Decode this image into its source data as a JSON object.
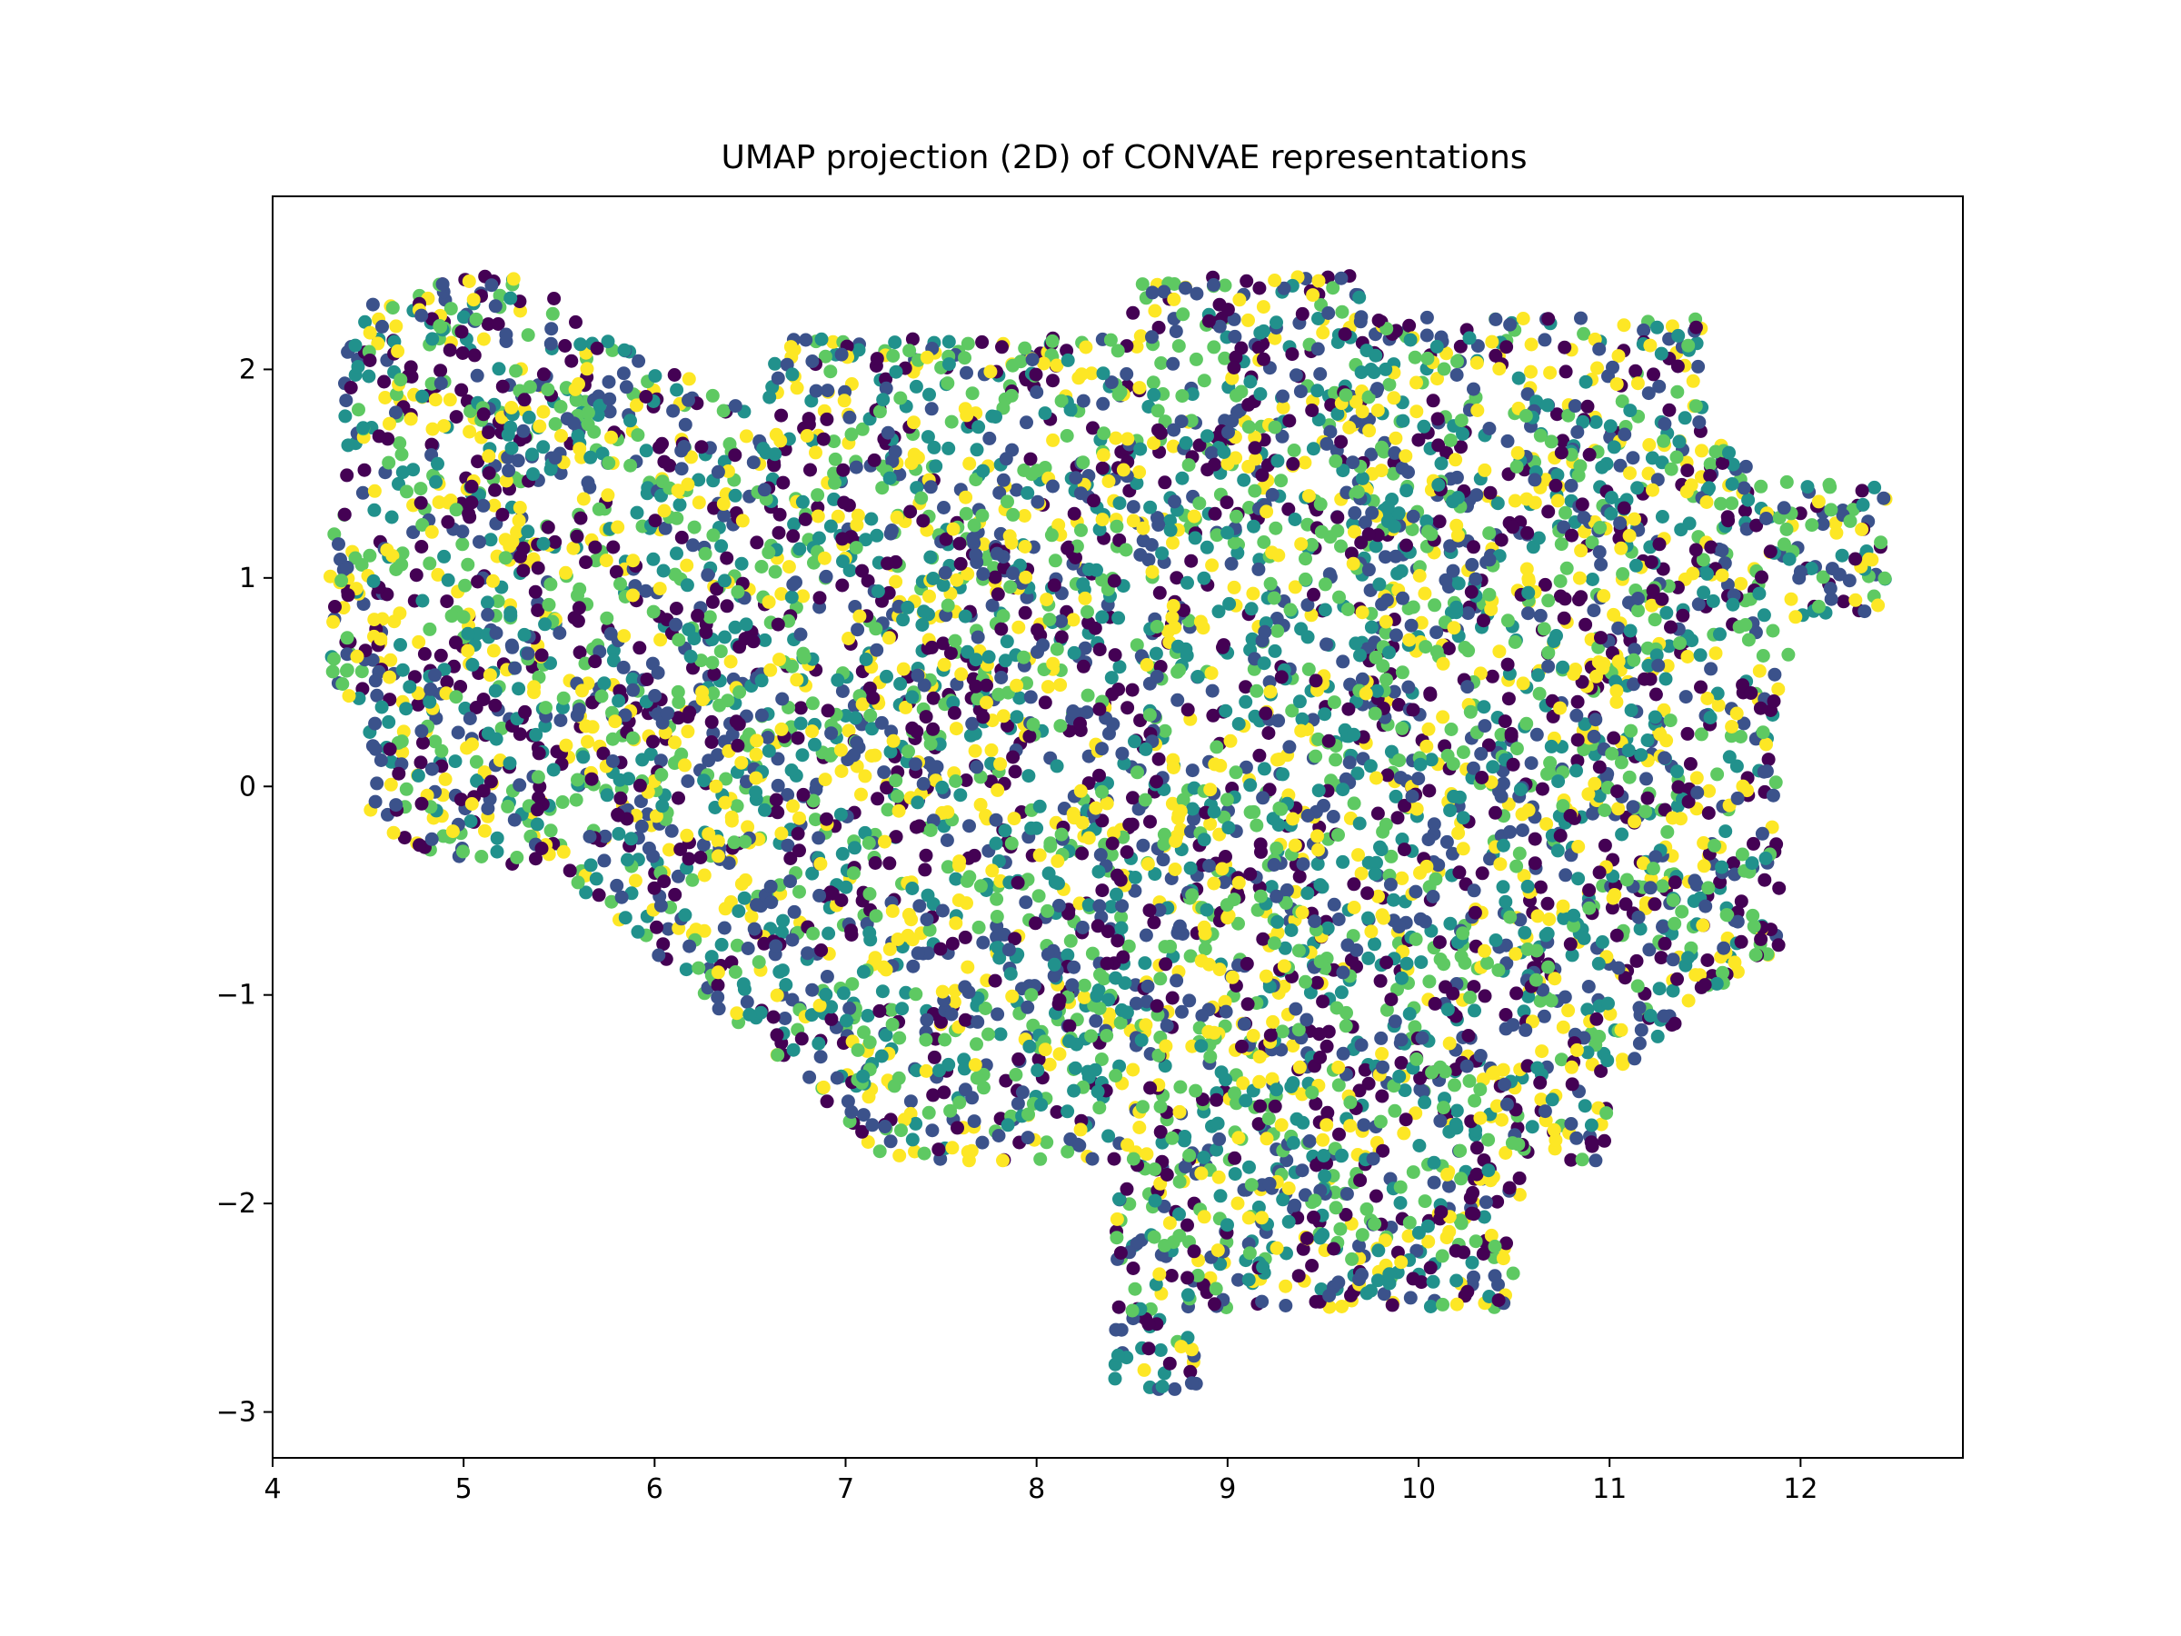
{
  "chart_data": {
    "type": "scatter",
    "title": "UMAP projection (2D) of CONVAE representations",
    "xlabel": "",
    "ylabel": "",
    "xlim": [
      4.0,
      12.85
    ],
    "ylim": [
      -3.22,
      2.83
    ],
    "x_ticks": [
      4,
      5,
      6,
      7,
      8,
      9,
      10,
      11,
      12
    ],
    "x_tick_labels": [
      "4",
      "5",
      "6",
      "7",
      "8",
      "9",
      "10",
      "11",
      "12"
    ],
    "y_ticks": [
      2,
      1,
      0,
      -1,
      -2,
      -3
    ],
    "y_tick_labels": [
      "2",
      "1",
      "0",
      "−1",
      "−2",
      "−3"
    ],
    "grid": false,
    "legend": "none",
    "colormap": [
      "#440154",
      "#3b528b",
      "#21918c",
      "#5ec962",
      "#fde725"
    ],
    "cluster_regions": [
      {
        "x": [
          4.3,
          6.0
        ],
        "y": [
          0.0,
          2.55
        ]
      },
      {
        "x": [
          6.0,
          12.45
        ],
        "y": [
          -1.8,
          2.45
        ]
      },
      {
        "x": [
          7.0,
          11.7
        ],
        "y": [
          -2.1,
          0.6
        ]
      },
      {
        "x": [
          8.5,
          10.5
        ],
        "y": [
          -2.9,
          -1.9
        ]
      }
    ],
    "point_count": 6000
  }
}
